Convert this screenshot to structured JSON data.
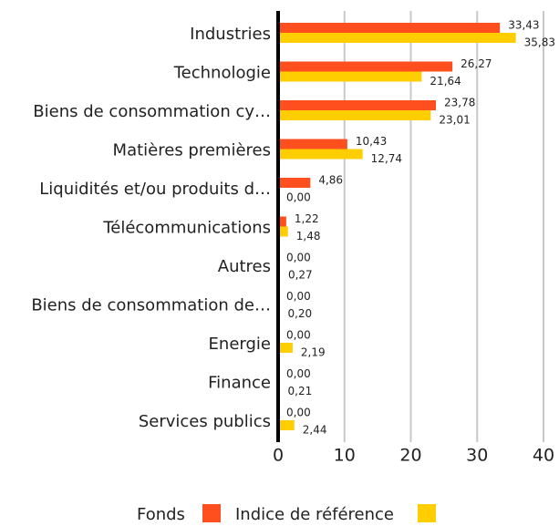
{
  "chart_data": {
    "type": "hbar",
    "categories": [
      "Industries",
      "Technologie",
      "Biens de consommation cy…",
      "Matières premières",
      "Liquidités et/ou produits d…",
      "Télécommunications",
      "Autres",
      "Biens de consommation de…",
      "Energie",
      "Finance",
      "Services publics"
    ],
    "series": [
      {
        "name": "Fonds",
        "color": "#ff4f1f",
        "values": [
          33.43,
          26.27,
          23.78,
          10.43,
          4.86,
          1.22,
          0,
          0,
          0,
          0,
          0
        ],
        "value_labels": [
          "33,43",
          "26,27",
          "23,78",
          "10,43",
          "4,86",
          "1,22",
          "0,00",
          "0,00",
          "0,00",
          "0,00",
          "0,00"
        ]
      },
      {
        "name": "Indice de référence",
        "color": "#ffce00",
        "values": [
          35.83,
          21.64,
          23.01,
          12.74,
          0,
          1.48,
          0.27,
          0.2,
          2.19,
          0.21,
          2.44
        ],
        "value_labels": [
          "35,83",
          "21,64",
          "23,01",
          "12,74",
          "0,00",
          "1,48",
          "0,27",
          "0,20",
          "2,19",
          "0,21",
          "2,44"
        ]
      }
    ],
    "xlim": [
      0,
      40
    ],
    "xticks": [
      0,
      10,
      20,
      30,
      40
    ],
    "grid": true,
    "legend": "bottom"
  }
}
